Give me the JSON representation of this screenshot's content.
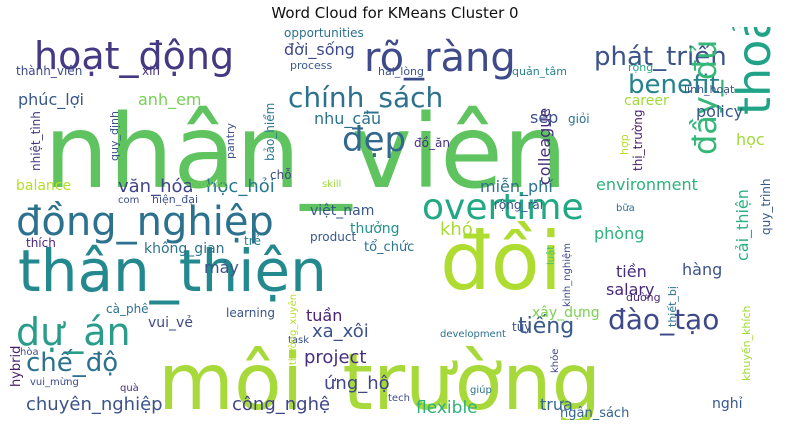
{
  "chart_data": {
    "type": "wordcloud",
    "title": "Word Cloud for KMeans Cluster 0",
    "grid": false,
    "legend": "none",
    "words": [
      {
        "text": "nhân_viên",
        "color": "#5fc35f"
      },
      {
        "text": "môi_trường",
        "color": "#a8d93b"
      },
      {
        "text": "thân_thiện",
        "color": "#23898e"
      },
      {
        "text": "đồi",
        "color": "#aedc30"
      },
      {
        "text": "đồng_nghiệp",
        "color": "#2c728e"
      },
      {
        "text": "hoạt_động",
        "color": "#443983"
      },
      {
        "text": "rõ_ràng",
        "color": "#3e4a89"
      },
      {
        "text": "phát_triển",
        "color": "#3b528b"
      },
      {
        "text": "chính_sách",
        "color": "#2c728e"
      },
      {
        "text": "đẹp",
        "color": "#31688e"
      },
      {
        "text": "benefit",
        "color": "#26828e"
      },
      {
        "text": "overtime",
        "color": "#22a884"
      },
      {
        "text": "thoải_mái",
        "color": "#20a386"
      },
      {
        "text": "dự_án",
        "color": "#2a9d8a"
      },
      {
        "text": "đào_tạo",
        "color": "#3e4989"
      },
      {
        "text": "đầy_đủ",
        "color": "#35b779"
      },
      {
        "text": "chế_độ",
        "color": "#2c728e"
      },
      {
        "text": "project",
        "color": "#472f7d"
      },
      {
        "text": "tiếng",
        "color": "#38598c"
      },
      {
        "text": "xa_xôi",
        "color": "#3b528b"
      },
      {
        "text": "ứng_hộ",
        "color": "#404588"
      },
      {
        "text": "chuyên_nghiệp",
        "color": "#3b528b"
      },
      {
        "text": "công_nghệ",
        "color": "#404588"
      },
      {
        "text": "flexible",
        "color": "#2db27d"
      },
      {
        "text": "trưa",
        "color": "#31688e"
      },
      {
        "text": "ngân_sách",
        "color": "#33638d"
      },
      {
        "text": "hybrid",
        "color": "#481f70"
      },
      {
        "text": "văn_hóa",
        "color": "#404588"
      },
      {
        "text": "học_hỏi",
        "color": "#2a788e"
      },
      {
        "text": "miễn_phí",
        "color": "#2c728e"
      },
      {
        "text": "environment",
        "color": "#2db27d"
      },
      {
        "text": "balance",
        "color": "#b5de2b"
      },
      {
        "text": "phúc_lợi",
        "color": "#38588c"
      },
      {
        "text": "anh_em",
        "color": "#75d054"
      },
      {
        "text": "nhu_cầu",
        "color": "#2c728e"
      },
      {
        "text": "sếp",
        "color": "#3b528b"
      },
      {
        "text": "việt_nam",
        "color": "#38588c"
      },
      {
        "text": "thưởng",
        "color": "#20928c"
      },
      {
        "text": "khó",
        "color": "#a8db34"
      },
      {
        "text": "không_gian",
        "color": "#2c728e"
      },
      {
        "text": "máy",
        "color": "#3b528b"
      },
      {
        "text": "tuần",
        "color": "#482374"
      },
      {
        "text": "vui_vẻ",
        "color": "#3e4a89"
      },
      {
        "text": "phòng",
        "color": "#2db27d"
      },
      {
        "text": "tiền",
        "color": "#472d7b"
      },
      {
        "text": "salary",
        "color": "#482878"
      },
      {
        "text": "hàng",
        "color": "#3b528b"
      },
      {
        "text": "policy",
        "color": "#38588c"
      },
      {
        "text": "career",
        "color": "#9fda3a"
      },
      {
        "text": "học",
        "color": "#a0da39"
      },
      {
        "text": "cải_thiện",
        "color": "#2ab07f"
      },
      {
        "text": "colleague",
        "color": "#472c7a"
      },
      {
        "text": "đời_sống",
        "color": "#3e4989"
      },
      {
        "text": "opportunities",
        "color": "#2c728e"
      },
      {
        "text": "thành_viên",
        "color": "#3e4a89"
      },
      {
        "text": "xin",
        "color": "#472f7d"
      },
      {
        "text": "process",
        "color": "#38598c"
      },
      {
        "text": "hài_lòng",
        "color": "#3b528b"
      },
      {
        "text": "quản_tâm",
        "color": "#26828e"
      },
      {
        "text": "rộng",
        "color": "#22a884"
      },
      {
        "text": "giỏi",
        "color": "#2c728e"
      },
      {
        "text": "linh_hoạt",
        "color": "#3b528b"
      },
      {
        "text": "nhiệt_tình",
        "color": "#443983"
      },
      {
        "text": "quy_định",
        "color": "#3b528b"
      },
      {
        "text": "pantry",
        "color": "#3b528b"
      },
      {
        "text": "bảo_hiểm",
        "color": "#2a788e"
      },
      {
        "text": "đồ_ăn",
        "color": "#472f7d"
      },
      {
        "text": "thị_trường",
        "color": "#481f70"
      },
      {
        "text": "hợp",
        "color": "#b5de2b"
      },
      {
        "text": "bữa",
        "color": "#2c728e"
      },
      {
        "text": "quy_trình",
        "color": "#38588c"
      },
      {
        "text": "chỗ",
        "color": "#404588"
      },
      {
        "text": "provide",
        "color": "#7ad151"
      },
      {
        "text": "skill",
        "color": "#a0da39"
      },
      {
        "text": "com",
        "color": "#3e4a89"
      },
      {
        "text": "hiện_đại",
        "color": "#3b528b"
      },
      {
        "text": "rộng_rãi",
        "color": "#3b528b"
      },
      {
        "text": "thích",
        "color": "#482878"
      },
      {
        "text": "trẻ",
        "color": "#26828e"
      },
      {
        "text": "product",
        "color": "#38588c"
      },
      {
        "text": "tổ_chức",
        "color": "#2c728e"
      },
      {
        "text": "luật",
        "color": "#4ac16d"
      },
      {
        "text": "thiết_bị",
        "color": "#2c728e"
      },
      {
        "text": "kinh_nghiệm",
        "color": "#3e4989"
      },
      {
        "text": "cà_phê",
        "color": "#2c728e"
      },
      {
        "text": "learning",
        "color": "#3b528b"
      },
      {
        "text": "xây_dựng",
        "color": "#7ad151"
      },
      {
        "text": "tùy",
        "color": "#3b528b"
      },
      {
        "text": "đường",
        "color": "#482878"
      },
      {
        "text": "development",
        "color": "#2c728e"
      },
      {
        "text": "task",
        "color": "#3b528b"
      },
      {
        "text": "thường_xuyên",
        "color": "#b5de2b"
      },
      {
        "text": "hòa",
        "color": "#3b528b"
      },
      {
        "text": "vui_mừng",
        "color": "#3e4a89"
      },
      {
        "text": "quà",
        "color": "#472f7d"
      },
      {
        "text": "khỏe",
        "color": "#3e4989"
      },
      {
        "text": "giúp",
        "color": "#2c728e"
      },
      {
        "text": "tech",
        "color": "#3e4a89"
      },
      {
        "text": "nghỉ",
        "color": "#38588c"
      },
      {
        "text": "khuyến_khích",
        "color": "#a0da39"
      }
    ]
  }
}
